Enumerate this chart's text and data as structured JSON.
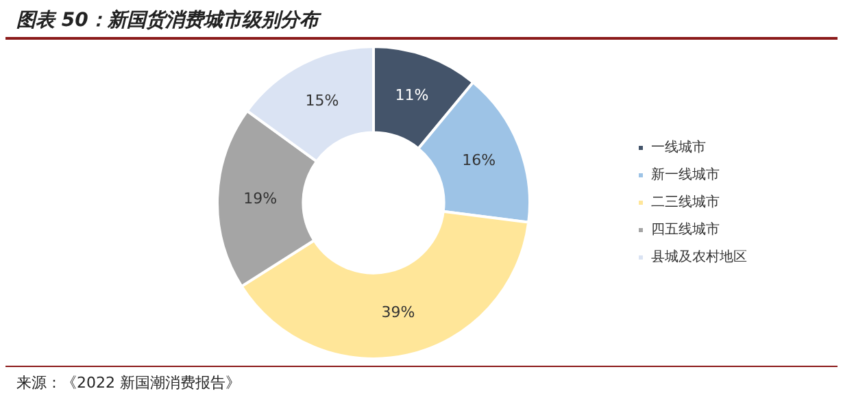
{
  "chart_data": {
    "type": "donut",
    "title": "图表 50：新国货消费城市级别分布",
    "categories": [
      "一线城市",
      "新一线城市",
      "二三线城市",
      "四五线城市",
      "县城及农村地区"
    ],
    "values": [
      11,
      16,
      39,
      19,
      15
    ],
    "colors": [
      "#44546a",
      "#9dc3e6",
      "#ffe699",
      "#a5a5a5",
      "#dae3f3"
    ],
    "value_labels": [
      "11%",
      "16%",
      "39%",
      "19%",
      "15%"
    ],
    "legend": "right",
    "annotations": [
      "来源：《2022 新国潮消费报告》"
    ]
  }
}
